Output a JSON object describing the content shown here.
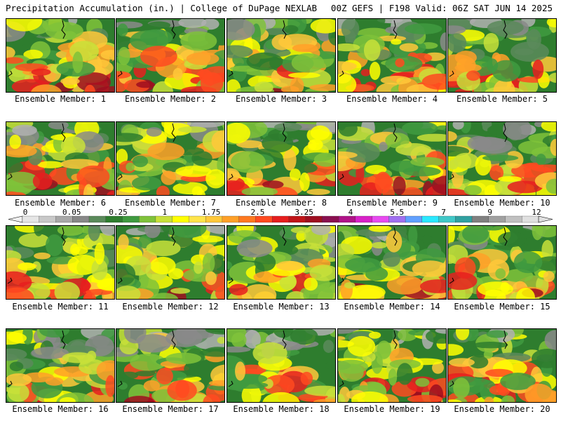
{
  "header": {
    "left": "Precipitation Accumulation (in.) | College of DuPage NEXLAB",
    "right": "00Z GEFS | F198 Valid: 06Z SAT JUN 14 2025"
  },
  "label_prefix": "Ensemble Member: ",
  "members": [
    1,
    2,
    3,
    4,
    5,
    6,
    7,
    8,
    9,
    10,
    11,
    12,
    13,
    14,
    15,
    16,
    17,
    18,
    19,
    20
  ],
  "legend": {
    "tick_labels": [
      "0",
      "0.05",
      "0.25",
      "1",
      "1.75",
      "2.5",
      "3.25",
      "4",
      "5.5",
      "7",
      "9",
      "12"
    ],
    "colors": [
      "#e6e6e6",
      "#c8c8c8",
      "#a8a8a8",
      "#888888",
      "#5a8a5a",
      "#2e7d2e",
      "#3f9a3f",
      "#7fc23a",
      "#c8e03a",
      "#ffff00",
      "#ffe44a",
      "#ffc83a",
      "#ffa028",
      "#ff7820",
      "#ff4a20",
      "#e61e1e",
      "#c01418",
      "#9e0e20",
      "#8a1050",
      "#b01488",
      "#d822c8",
      "#e84af0",
      "#a070f0",
      "#60a0ff",
      "#2ae8ff",
      "#40c8c8",
      "#30a0a0",
      "#808080",
      "#a0a0a0",
      "#c0c0c0",
      "#e0e0e0"
    ]
  }
}
